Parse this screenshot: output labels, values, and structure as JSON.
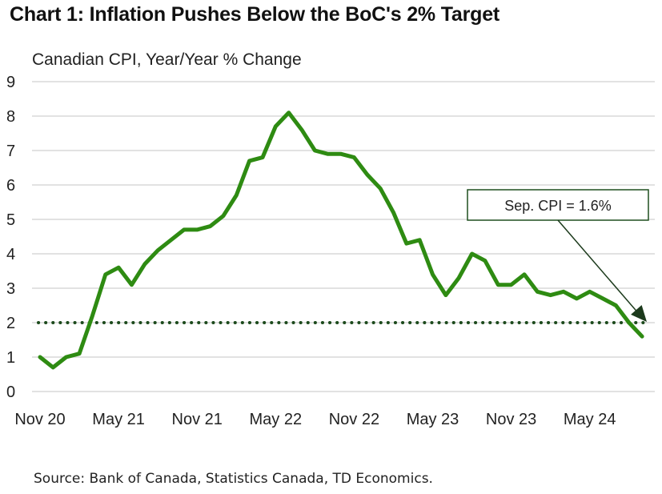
{
  "title": "Chart 1: Inflation Pushes Below the BoC's 2% Target",
  "subtitle": "Canadian CPI, Year/Year % Change",
  "source": "Source: Bank of Canada, Statistics Canada, TD Economics.",
  "colors": {
    "series": "#2e8b12",
    "target": "#1c4a1c",
    "grid": "#d9d9d9",
    "arrow": "#1c3a1c"
  },
  "chart_data": {
    "type": "line",
    "title": "Chart 1: Inflation Pushes Below the BoC's 2% Target",
    "ylabel": "Canadian CPI, Year/Year % Change",
    "xlabel": "",
    "ylim": [
      0,
      9
    ],
    "yticks": [
      "0",
      "1",
      "2",
      "3",
      "4",
      "5",
      "6",
      "7",
      "8",
      "9"
    ],
    "grid": true,
    "x_tick_labels": [
      {
        "label": "Nov 20",
        "index": 0
      },
      {
        "label": "May 21",
        "index": 6
      },
      {
        "label": "Nov 21",
        "index": 12
      },
      {
        "label": "May 22",
        "index": 18
      },
      {
        "label": "Nov 22",
        "index": 24
      },
      {
        "label": "May 23",
        "index": 30
      },
      {
        "label": "Nov 23",
        "index": 36
      },
      {
        "label": "May 24",
        "index": 42
      }
    ],
    "series": [
      {
        "name": "Canadian CPI y/y",
        "x": [
          "Nov 20",
          "Dec 20",
          "Jan 21",
          "Feb 21",
          "Mar 21",
          "Apr 21",
          "May 21",
          "Jun 21",
          "Jul 21",
          "Aug 21",
          "Sep 21",
          "Oct 21",
          "Nov 21",
          "Dec 21",
          "Jan 22",
          "Feb 22",
          "Mar 22",
          "Apr 22",
          "May 22",
          "Jun 22",
          "Jul 22",
          "Aug 22",
          "Sep 22",
          "Oct 22",
          "Nov 22",
          "Dec 22",
          "Jan 23",
          "Feb 23",
          "Mar 23",
          "Apr 23",
          "May 23",
          "Jun 23",
          "Jul 23",
          "Aug 23",
          "Sep 23",
          "Oct 23",
          "Nov 23",
          "Dec 23",
          "Jan 24",
          "Feb 24",
          "Mar 24",
          "Apr 24",
          "May 24",
          "Jun 24",
          "Jul 24",
          "Aug 24",
          "Sep 24"
        ],
        "values": [
          1.0,
          0.7,
          1.0,
          1.1,
          2.2,
          3.4,
          3.6,
          3.1,
          3.7,
          4.1,
          4.4,
          4.7,
          4.7,
          4.8,
          5.1,
          5.7,
          6.7,
          6.8,
          7.7,
          8.1,
          7.6,
          7.0,
          6.9,
          6.9,
          6.8,
          6.3,
          5.9,
          5.2,
          4.3,
          4.4,
          3.4,
          2.8,
          3.3,
          4.0,
          3.8,
          3.1,
          3.1,
          3.4,
          2.9,
          2.8,
          2.9,
          2.7,
          2.9,
          2.7,
          2.5,
          2.0,
          1.6
        ]
      }
    ],
    "reference_line": {
      "name": "BoC 2% Target",
      "value": 2,
      "style": "dotted"
    },
    "annotation": {
      "text": "Sep. CPI = 1.6%",
      "points_to_index": 46
    }
  }
}
